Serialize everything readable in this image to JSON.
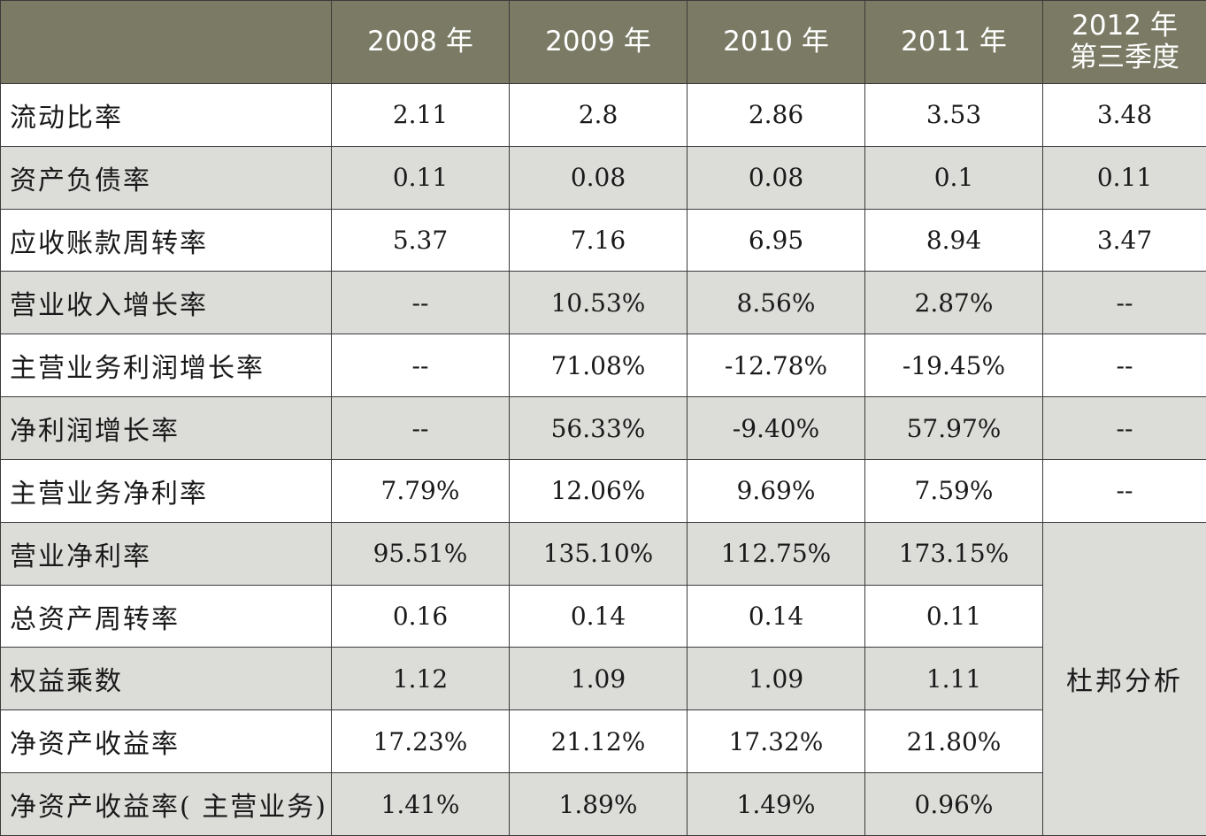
{
  "table": {
    "headers": [
      "",
      "2008 年",
      "2009 年",
      "2010 年",
      "2011 年"
    ],
    "last_header": [
      "2012 年",
      "第三季度"
    ],
    "rows": [
      {
        "label": "流动比率",
        "values": [
          "2.11",
          "2.8",
          "2.86",
          "3.53",
          "3.48"
        ]
      },
      {
        "label": "资产负债率",
        "values": [
          "0.11",
          "0.08",
          "0.08",
          "0.1",
          "0.11"
        ]
      },
      {
        "label": "应收账款周转率",
        "values": [
          "5.37",
          "7.16",
          "6.95",
          "8.94",
          "3.47"
        ]
      },
      {
        "label": "营业收入增长率",
        "values": [
          "--",
          "10.53%",
          "8.56%",
          "2.87%",
          "--"
        ]
      },
      {
        "label": "主营业务利润增长率",
        "values": [
          "--",
          "71.08%",
          "-12.78%",
          "-19.45%",
          "--"
        ]
      },
      {
        "label": "净利润增长率",
        "values": [
          "--",
          "56.33%",
          "-9.40%",
          "57.97%",
          "--"
        ]
      },
      {
        "label": "主营业务净利率",
        "values": [
          "7.79%",
          "12.06%",
          "9.69%",
          "7.59%",
          "--"
        ]
      },
      {
        "label": "营业净利率",
        "values": [
          "95.51%",
          "135.10%",
          "112.75%",
          "173.15%"
        ]
      },
      {
        "label": "总资产周转率",
        "values": [
          "0.16",
          "0.14",
          "0.14",
          "0.11"
        ]
      },
      {
        "label": "权益乘数",
        "values": [
          "1.12",
          "1.09",
          "1.09",
          "1.11"
        ]
      },
      {
        "label": "净资产收益率",
        "values": [
          "17.23%",
          "21.12%",
          "17.32%",
          "21.80%"
        ]
      },
      {
        "label": "净资产收益率( 主营业务)",
        "values": [
          "1.41%",
          "1.89%",
          "1.49%",
          "0.96%"
        ]
      }
    ],
    "merged_note": "杜邦分析"
  }
}
